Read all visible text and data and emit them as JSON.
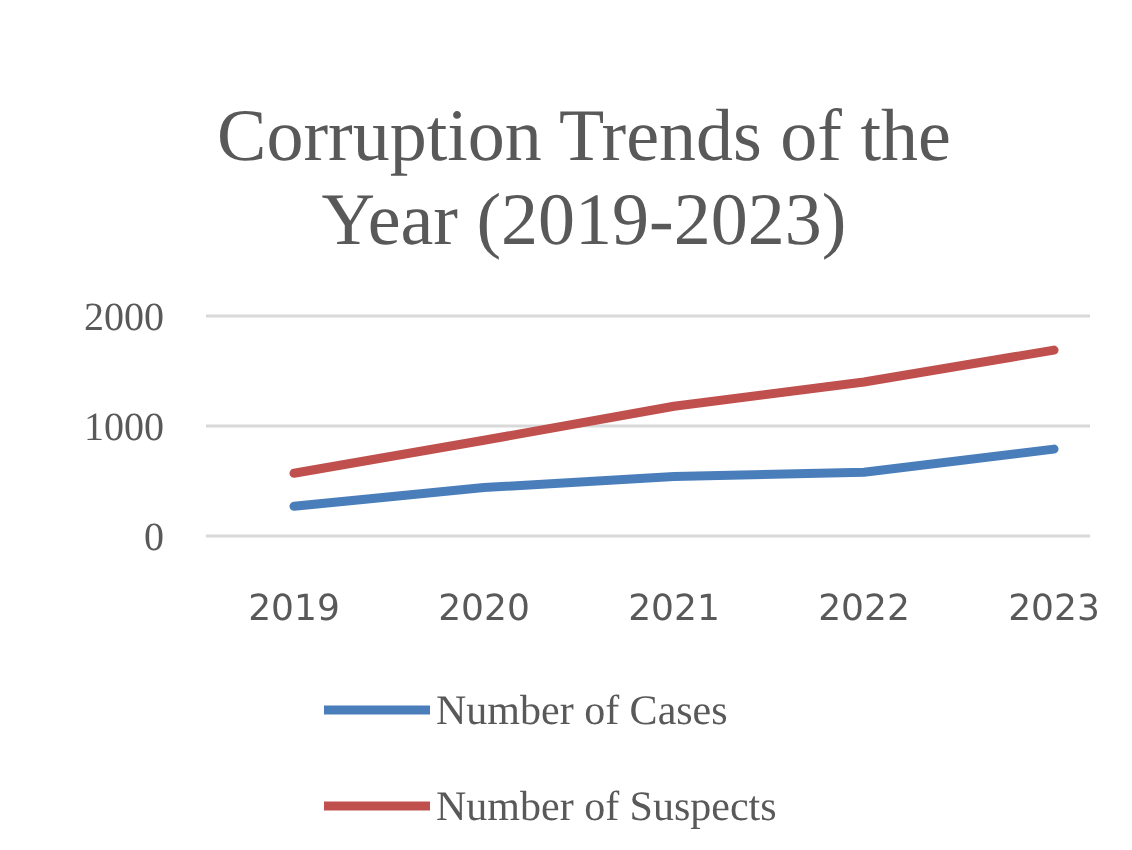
{
  "chart_data": {
    "type": "line",
    "title": "Corruption Trends of the Year (2019-2023)",
    "categories": [
      "2019",
      "2020",
      "2021",
      "2022",
      "2023"
    ],
    "series": [
      {
        "name": "Number of Cases",
        "color": "#4a7ebb",
        "values": [
          270,
          440,
          540,
          580,
          790
        ]
      },
      {
        "name": "Number of Suspects",
        "color": "#c0504d",
        "values": [
          570,
          870,
          1180,
          1400,
          1690
        ]
      }
    ],
    "ylim": [
      0,
      2000
    ],
    "yticks": [
      0,
      1000,
      2000
    ],
    "grid": "y",
    "legend": "bottom",
    "marker": "none",
    "line_style": "solid"
  }
}
